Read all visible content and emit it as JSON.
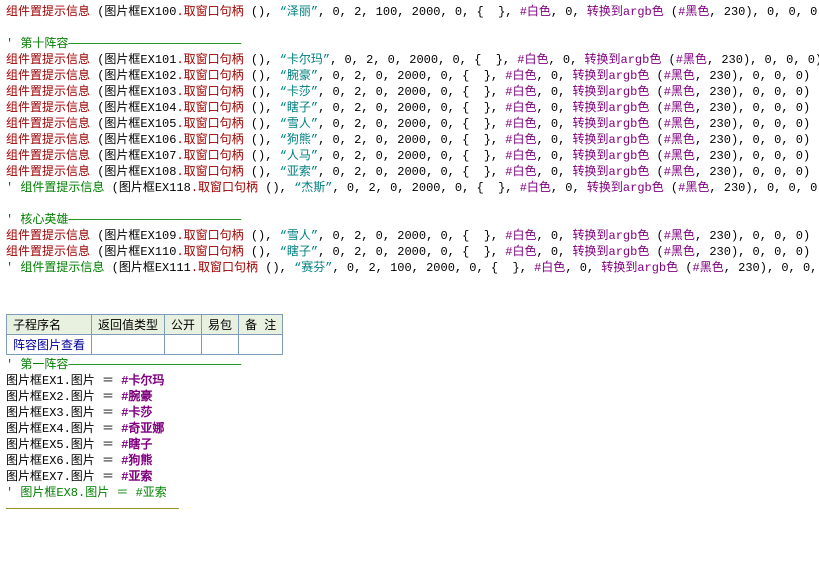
{
  "fn": "组件置提示信息",
  "obj": "图片框EX",
  "mth": ".取窗口句柄",
  "tail1": "0,",
  "conv": "转换到argb色",
  "blk": "#黑色",
  "wh": "#白色",
  "n230": "230",
  "tailZeros": "0, 0, 0",
  "paramsStd": "0, 2, 0, 2000, 0, {  }, ",
  "paramsAlt": "0, 2, 100, 2000, 0, {  }, ",
  "lines1": [
    {
      "id": "100",
      "name": "泽丽",
      "alt": true
    }
  ],
  "sec10": "第十阵容",
  "lines2": [
    {
      "id": "101",
      "name": "卡尔玛"
    },
    {
      "id": "102",
      "name": "腕豪"
    },
    {
      "id": "103",
      "name": "卡莎"
    },
    {
      "id": "104",
      "name": "瞎子"
    },
    {
      "id": "105",
      "name": "雪人"
    },
    {
      "id": "106",
      "name": "狗熊"
    },
    {
      "id": "107",
      "name": "人马"
    },
    {
      "id": "108",
      "name": "亚索"
    }
  ],
  "cmt1": {
    "id": "118",
    "name": "杰斯"
  },
  "secCore": "核心英雄",
  "lines3": [
    {
      "id": "109",
      "name": "雪人"
    },
    {
      "id": "110",
      "name": "瞎子"
    }
  ],
  "cmt2": {
    "id": "111",
    "name": "赛芬",
    "alt": true
  },
  "tbl": {
    "c1": "子程序名",
    "c2": "返回值类型",
    "c3": "公开",
    "c4": "易包",
    "c5": "备 注",
    "v1": "阵容图片查看"
  },
  "sec1": "第一阵容",
  "asg": [
    {
      "id": "1",
      "name": "卡尔玛"
    },
    {
      "id": "2",
      "name": "腕豪"
    },
    {
      "id": "3",
      "name": "卡莎"
    },
    {
      "id": "4",
      "name": "奇亚娜"
    },
    {
      "id": "5",
      "name": "瞎子"
    },
    {
      "id": "6",
      "name": "狗熊"
    },
    {
      "id": "7",
      "name": "亚索"
    }
  ],
  "asgC": {
    "id": "8",
    "name": "亚索"
  }
}
